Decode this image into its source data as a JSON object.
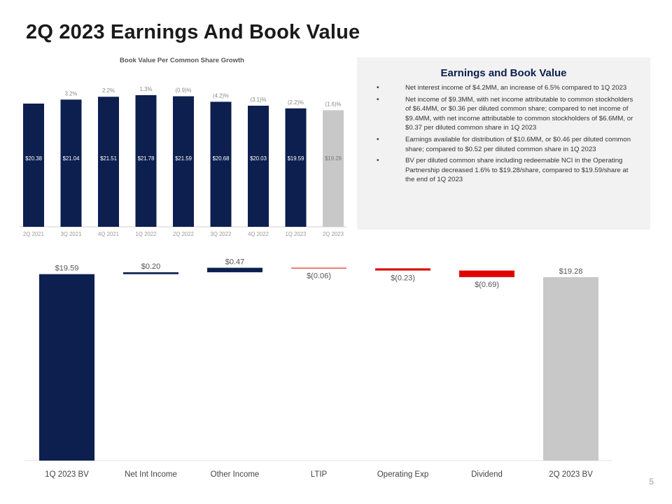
{
  "page": {
    "title": "2Q 2023 Earnings And Book Value",
    "page_number": "5"
  },
  "panel": {
    "title": "Earnings and Book Value",
    "bullets": [
      "Net interest income of $4.2MM, an increase of 6.5% compared to 1Q 2023",
      "Net income of $9.3MM, with net income attributable to common stockholders of $6.4MM, or $0.36 per diluted common share; compared to net income of $9.4MM, with net income attributable to common stockholders of $6.6MM, or $0.37 per diluted common share in 1Q 2023",
      "Earnings available for distribution of $10.6MM, or $0.46 per diluted common share; compared to $0.52 per diluted common share in 1Q 2023",
      "BV per diluted common share including redeemable NCI in the Operating Partnership decreased 1.6% to $19.28/share, compared to $19.59/share at the end of 1Q 2023"
    ]
  },
  "chart_data": [
    {
      "type": "bar",
      "title": "Book Value Per Common Share Growth",
      "categories": [
        "2Q 2021",
        "3Q 2021",
        "4Q 2021",
        "1Q 2022",
        "2Q 2022",
        "3Q 2022",
        "4Q 2022",
        "1Q 2023",
        "2Q 2023"
      ],
      "values": [
        20.38,
        21.04,
        21.51,
        21.78,
        21.59,
        20.68,
        20.03,
        19.59,
        19.28
      ],
      "value_labels": [
        "$20.38",
        "$21.04",
        "$21.51",
        "$21.78",
        "$21.59",
        "$20.68",
        "$20.03",
        "$19.59",
        "$19.28"
      ],
      "growth_labels": [
        "",
        "3.2%",
        "2.2%",
        "1.3%",
        "(0.9)%",
        "(4.2)%",
        "(3.1)%",
        "(2.2)%",
        "(1.6)%"
      ],
      "colors": [
        "#0c1f4f",
        "#0c1f4f",
        "#0c1f4f",
        "#0c1f4f",
        "#0c1f4f",
        "#0c1f4f",
        "#0c1f4f",
        "#0c1f4f",
        "#c8c8c8"
      ],
      "ylim": [
        0,
        22
      ],
      "grid": false
    },
    {
      "type": "bar",
      "subtype": "waterfall",
      "categories": [
        "1Q 2023 BV",
        "Net Int Income",
        "Other Income",
        "LTIP",
        "Operating Exp",
        "Dividend",
        "2Q 2023 BV"
      ],
      "values": [
        19.59,
        0.2,
        0.47,
        -0.06,
        -0.23,
        -0.69,
        19.28
      ],
      "labels": [
        "$19.59",
        "$0.20",
        "$0.47",
        "$(0.06)",
        "$(0.23)",
        "$(0.69)",
        "$19.28"
      ],
      "kinds": [
        "total",
        "delta",
        "delta",
        "delta",
        "delta",
        "delta",
        "total"
      ],
      "colors": [
        "#0c1f4f",
        "#0c1f4f",
        "#0c1f4f",
        "#e00000",
        "#e00000",
        "#e00000",
        "#c8c8c8"
      ],
      "grid": false
    }
  ]
}
